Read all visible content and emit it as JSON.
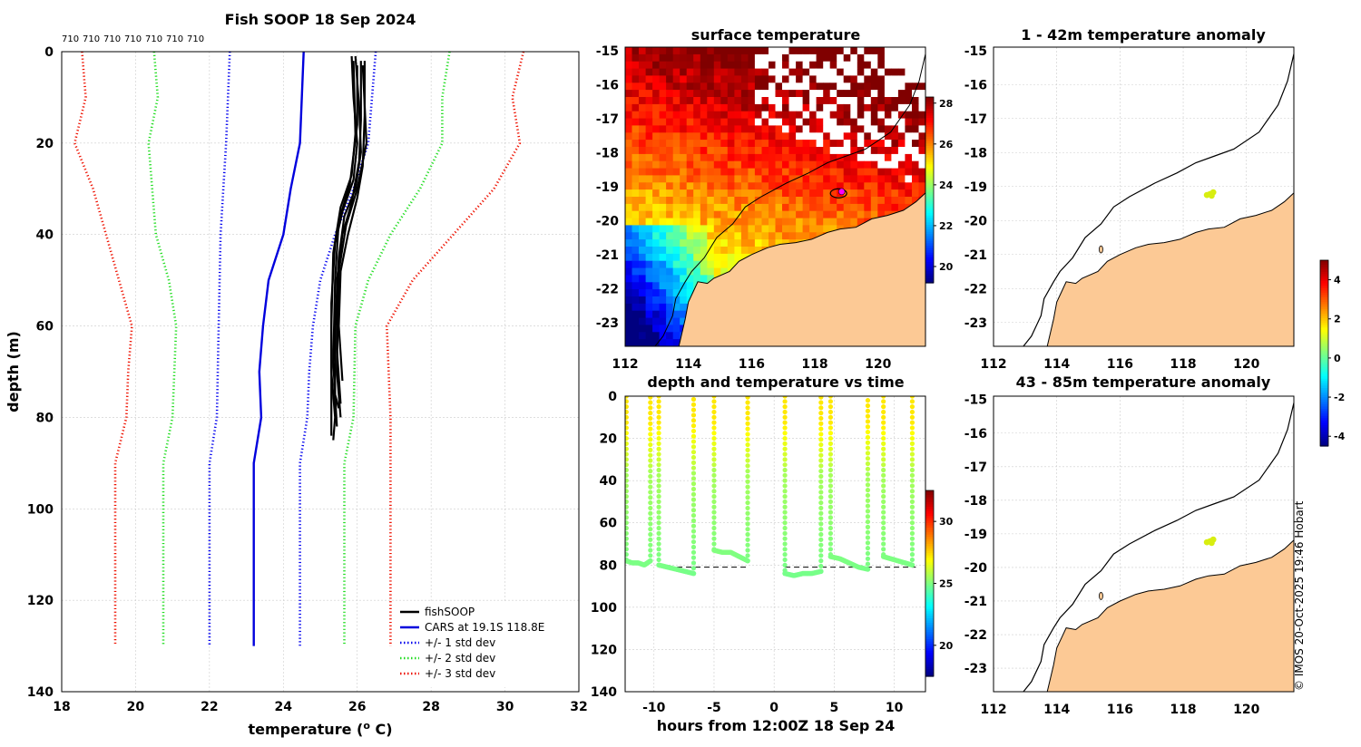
{
  "colors": {
    "fish": "#000000",
    "cars": "#0000dd",
    "sd1": "#0000ee",
    "sd2": "#22dd22",
    "sd3": "#ee1100",
    "land": "#fcc995",
    "grid": "#cccccc"
  },
  "chart_data": [
    {
      "type": "line",
      "title": "Fish SOOP 18 Sep 2024",
      "xlabel": "temperature (",
      "xlabel_sup": "o",
      "xlabel_end": " C)",
      "ylabel": "depth (m)",
      "xlim": [
        18,
        32
      ],
      "ylim": [
        140,
        0
      ],
      "xticks": [
        "18",
        "20",
        "22",
        "24",
        "26",
        "28",
        "30",
        "32"
      ],
      "yticks": [
        "0",
        "20",
        "40",
        "60",
        "80",
        "100",
        "120",
        "140"
      ],
      "id_labels": [
        "710",
        "710",
        "710",
        "710",
        "710",
        "710",
        "710"
      ],
      "legend": {
        "fish": "fishSOOP",
        "cars": "CARS at 19.1S 118.8E",
        "sd1": "+/- 1 std dev",
        "sd2": "+/- 2 std dev",
        "sd3": "+/- 3 std dev"
      },
      "series": [
        {
          "name": "CARS",
          "style": "solid",
          "color": "cars",
          "points": [
            [
              24.55,
              0
            ],
            [
              24.45,
              20
            ],
            [
              24.2,
              30
            ],
            [
              24.0,
              40
            ],
            [
              23.6,
              50
            ],
            [
              23.45,
              60
            ],
            [
              23.35,
              70
            ],
            [
              23.4,
              80
            ],
            [
              23.2,
              90
            ],
            [
              23.2,
              130
            ]
          ]
        },
        {
          "name": "-1 std",
          "style": "dotted",
          "color": "sd1",
          "points": [
            [
              22.55,
              0
            ],
            [
              22.45,
              20
            ],
            [
              22.3,
              40
            ],
            [
              22.25,
              60
            ],
            [
              22.2,
              80
            ],
            [
              22.0,
              90
            ],
            [
              22.0,
              130
            ]
          ]
        },
        {
          "name": "+1 std",
          "style": "dotted",
          "color": "sd1",
          "points": [
            [
              26.5,
              0
            ],
            [
              26.3,
              20
            ],
            [
              25.9,
              30
            ],
            [
              25.4,
              40
            ],
            [
              25.0,
              50
            ],
            [
              24.8,
              60
            ],
            [
              24.7,
              70
            ],
            [
              24.65,
              80
            ],
            [
              24.45,
              90
            ],
            [
              24.45,
              130
            ]
          ]
        },
        {
          "name": "-2 std",
          "style": "dotted",
          "color": "sd2",
          "points": [
            [
              20.5,
              0
            ],
            [
              20.6,
              10
            ],
            [
              20.35,
              20
            ],
            [
              20.55,
              40
            ],
            [
              20.9,
              50
            ],
            [
              21.1,
              60
            ],
            [
              21.0,
              80
            ],
            [
              20.75,
              90
            ],
            [
              20.75,
              130
            ]
          ]
        },
        {
          "name": "+2 std",
          "style": "dotted",
          "color": "sd2",
          "points": [
            [
              28.5,
              0
            ],
            [
              28.3,
              10
            ],
            [
              28.3,
              20
            ],
            [
              27.7,
              30
            ],
            [
              26.9,
              40
            ],
            [
              26.3,
              50
            ],
            [
              25.95,
              60
            ],
            [
              25.9,
              80
            ],
            [
              25.65,
              90
            ],
            [
              25.65,
              130
            ]
          ]
        },
        {
          "name": "-3 std",
          "style": "dotted",
          "color": "sd3",
          "points": [
            [
              18.55,
              0
            ],
            [
              18.65,
              10
            ],
            [
              18.35,
              20
            ],
            [
              18.85,
              30
            ],
            [
              19.2,
              40
            ],
            [
              19.55,
              50
            ],
            [
              19.9,
              60
            ],
            [
              19.8,
              70
            ],
            [
              19.75,
              80
            ],
            [
              19.45,
              90
            ],
            [
              19.45,
              130
            ]
          ]
        },
        {
          "name": "+3 std",
          "style": "dotted",
          "color": "sd3",
          "points": [
            [
              30.5,
              0
            ],
            [
              30.2,
              10
            ],
            [
              30.4,
              20
            ],
            [
              29.7,
              30
            ],
            [
              28.6,
              40
            ],
            [
              27.5,
              50
            ],
            [
              26.8,
              60
            ],
            [
              26.9,
              80
            ],
            [
              26.9,
              90
            ],
            [
              26.9,
              130
            ]
          ]
        }
      ],
      "fish_profiles": [
        [
          [
            25.85,
            1
          ],
          [
            25.9,
            10
          ],
          [
            26.0,
            20
          ],
          [
            25.9,
            28
          ],
          [
            25.6,
            35
          ],
          [
            25.4,
            42
          ],
          [
            25.3,
            55
          ],
          [
            25.3,
            70
          ],
          [
            25.4,
            80
          ],
          [
            25.35,
            85
          ]
        ],
        [
          [
            25.95,
            1
          ],
          [
            26.05,
            12
          ],
          [
            26.1,
            22
          ],
          [
            25.95,
            30
          ],
          [
            25.65,
            36
          ],
          [
            25.5,
            45
          ],
          [
            25.4,
            60
          ],
          [
            25.4,
            75
          ],
          [
            25.5,
            78
          ]
        ],
        [
          [
            26.1,
            2
          ],
          [
            26.1,
            15
          ],
          [
            26.05,
            24
          ],
          [
            25.85,
            33
          ],
          [
            25.6,
            40
          ],
          [
            25.45,
            50
          ],
          [
            25.45,
            65
          ],
          [
            25.55,
            77
          ]
        ],
        [
          [
            26.2,
            2
          ],
          [
            26.2,
            14
          ],
          [
            26.15,
            25
          ],
          [
            26.0,
            32
          ],
          [
            25.75,
            40
          ],
          [
            25.55,
            48
          ],
          [
            25.5,
            60
          ],
          [
            25.6,
            72
          ]
        ],
        [
          [
            25.9,
            2
          ],
          [
            25.95,
            18
          ],
          [
            25.85,
            27
          ],
          [
            25.55,
            34
          ],
          [
            25.35,
            44
          ],
          [
            25.3,
            60
          ],
          [
            25.3,
            84
          ]
        ],
        [
          [
            26.0,
            3
          ],
          [
            26.0,
            16
          ],
          [
            25.8,
            29
          ],
          [
            25.5,
            37
          ],
          [
            25.4,
            50
          ],
          [
            25.35,
            68
          ],
          [
            25.45,
            82
          ]
        ],
        [
          [
            26.15,
            3
          ],
          [
            26.25,
            20
          ],
          [
            26.0,
            30
          ],
          [
            25.7,
            38
          ],
          [
            25.5,
            48
          ],
          [
            25.45,
            70
          ],
          [
            25.55,
            80
          ]
        ]
      ]
    },
    {
      "type": "heatmap",
      "title": "surface temperature",
      "xticks": [
        "112",
        "114",
        "116",
        "118",
        "120"
      ],
      "yticks": [
        "-15",
        "-16",
        "-17",
        "-18",
        "-19",
        "-20",
        "-21",
        "-22",
        "-23"
      ],
      "lon_range": [
        112,
        121.5
      ],
      "lat_range": [
        -23.7,
        -14.9
      ],
      "colorbar_ticks": [
        "28",
        "26",
        "24",
        "22",
        "20"
      ],
      "colorbar_range": [
        19.2,
        28.3
      ]
    },
    {
      "type": "scatter",
      "title": "depth and temperature vs time",
      "xlabel": "hours from 12:00Z 18 Sep 24",
      "xticks": [
        "-10",
        "-5",
        "0",
        "5",
        "10"
      ],
      "yticks": [
        "0",
        "20",
        "40",
        "60",
        "80",
        "100",
        "120",
        "140"
      ],
      "xlim": [
        -12.4,
        12.6
      ],
      "ylim": [
        140,
        0
      ],
      "colorbar_ticks": [
        "30",
        "25",
        "20"
      ],
      "colorbar_range": [
        17.5,
        32.5
      ],
      "dives": [
        {
          "t0": -12.3,
          "t1": -10.3,
          "bottom": [
            78,
            79,
            79,
            80,
            78
          ]
        },
        {
          "t0": -9.6,
          "t1": -6.7,
          "bottom": [
            80,
            81,
            82,
            83,
            84
          ]
        },
        {
          "t0": -5.0,
          "t1": -2.2,
          "bottom": [
            73,
            74,
            74,
            76,
            78
          ]
        },
        {
          "t0": 0.9,
          "t1": 3.9,
          "bottom": [
            84,
            85,
            84,
            84,
            83
          ]
        },
        {
          "t0": 4.7,
          "t1": 7.8,
          "bottom": [
            76,
            77,
            79,
            81,
            82
          ]
        },
        {
          "t0": 9.1,
          "t1": 11.5,
          "bottom": [
            76,
            77,
            78,
            79,
            80
          ]
        }
      ],
      "cars_bottom": [
        {
          "t0": -9.6,
          "t1": -2.2,
          "depth": 81
        },
        {
          "t0": 0.9,
          "t1": 11.8,
          "depth": 81
        }
      ]
    },
    {
      "type": "scatter",
      "title": "1 - 42m temperature anomaly",
      "xticks": [
        "112",
        "114",
        "116",
        "118",
        "120"
      ],
      "yticks": [
        "-15",
        "-16",
        "-17",
        "-18",
        "-19",
        "-20",
        "-21",
        "-22",
        "-23"
      ],
      "colorbar_ticks": [
        "4",
        "2",
        "0",
        "-2",
        "-4"
      ],
      "colorbar_range": [
        -4.5,
        5
      ]
    },
    {
      "type": "scatter",
      "title": "43 - 85m temperature anomaly",
      "xticks": [
        "112",
        "114",
        "116",
        "118",
        "120"
      ],
      "yticks": [
        "-15",
        "-16",
        "-17",
        "-18",
        "-19",
        "-20",
        "-21",
        "-22",
        "-23"
      ]
    }
  ],
  "credit": "© IMOS 20-Oct-2025 19:46 Hobart"
}
